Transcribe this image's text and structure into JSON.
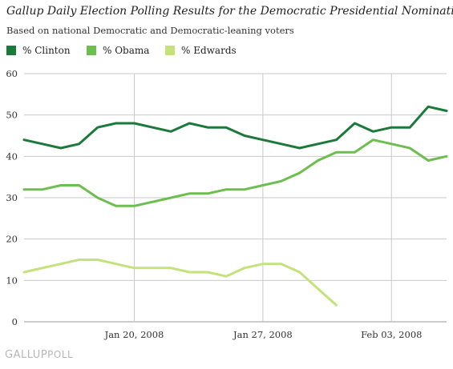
{
  "header": {
    "title": "Gallup Daily Election Polling Results for the Democratic Presidential Nomination",
    "subtitle": "Based on national Democratic and Democratic-leaning voters"
  },
  "brand": {
    "main": "GALLUP",
    "suffix": "POLL"
  },
  "colors": {
    "clinton": "#1b7a3a",
    "obama": "#6cbf4f",
    "edwards": "#c3e37a",
    "grid": "#c9c9c9",
    "text": "#333333"
  },
  "chart_data": {
    "type": "line",
    "title": "Gallup Daily Election Polling Results for the Democratic Presidential Nomination",
    "subtitle": "Based on national Democratic and Democratic-leaning voters",
    "xlabel": "",
    "ylabel": "",
    "ylim": [
      0,
      60
    ],
    "yticks": [
      "0",
      "10",
      "20",
      "30",
      "40",
      "50",
      "60"
    ],
    "xticks": [
      "Jan 20, 2008",
      "Jan 27, 2008",
      "Feb 03, 2008"
    ],
    "xlim": [
      "2008-01-14",
      "2008-02-06"
    ],
    "grid": true,
    "legend_position": "top-left",
    "series": [
      {
        "name": "% Clinton",
        "color": "#1b7a3a",
        "x": [
          "2008-01-14",
          "2008-01-15",
          "2008-01-16",
          "2008-01-17",
          "2008-01-18",
          "2008-01-19",
          "2008-01-20",
          "2008-01-21",
          "2008-01-22",
          "2008-01-23",
          "2008-01-24",
          "2008-01-25",
          "2008-01-26",
          "2008-01-27",
          "2008-01-28",
          "2008-01-29",
          "2008-01-30",
          "2008-01-31",
          "2008-02-01",
          "2008-02-02",
          "2008-02-03",
          "2008-02-04",
          "2008-02-05",
          "2008-02-06"
        ],
        "values": [
          44,
          43,
          42,
          43,
          47,
          48,
          48,
          47,
          46,
          48,
          47,
          47,
          45,
          44,
          43,
          42,
          43,
          44,
          48,
          46,
          47,
          47,
          52,
          51
        ]
      },
      {
        "name": "% Obama",
        "color": "#6cbf4f",
        "x": [
          "2008-01-14",
          "2008-01-15",
          "2008-01-16",
          "2008-01-17",
          "2008-01-18",
          "2008-01-19",
          "2008-01-20",
          "2008-01-21",
          "2008-01-22",
          "2008-01-23",
          "2008-01-24",
          "2008-01-25",
          "2008-01-26",
          "2008-01-27",
          "2008-01-28",
          "2008-01-29",
          "2008-01-30",
          "2008-01-31",
          "2008-02-01",
          "2008-02-02",
          "2008-02-03",
          "2008-02-04",
          "2008-02-05",
          "2008-02-06"
        ],
        "values": [
          32,
          32,
          33,
          33,
          30,
          28,
          28,
          29,
          30,
          31,
          31,
          32,
          32,
          33,
          34,
          36,
          39,
          41,
          41,
          44,
          43,
          42,
          39,
          40
        ]
      },
      {
        "name": "% Edwards",
        "color": "#c3e37a",
        "x": [
          "2008-01-14",
          "2008-01-15",
          "2008-01-16",
          "2008-01-17",
          "2008-01-18",
          "2008-01-19",
          "2008-01-20",
          "2008-01-21",
          "2008-01-22",
          "2008-01-23",
          "2008-01-24",
          "2008-01-25",
          "2008-01-26",
          "2008-01-27",
          "2008-01-28",
          "2008-01-29",
          "2008-01-30",
          "2008-01-31"
        ],
        "values": [
          12,
          13,
          14,
          15,
          15,
          14,
          13,
          13,
          13,
          12,
          12,
          11,
          13,
          14,
          14,
          12,
          8,
          4
        ]
      }
    ]
  }
}
